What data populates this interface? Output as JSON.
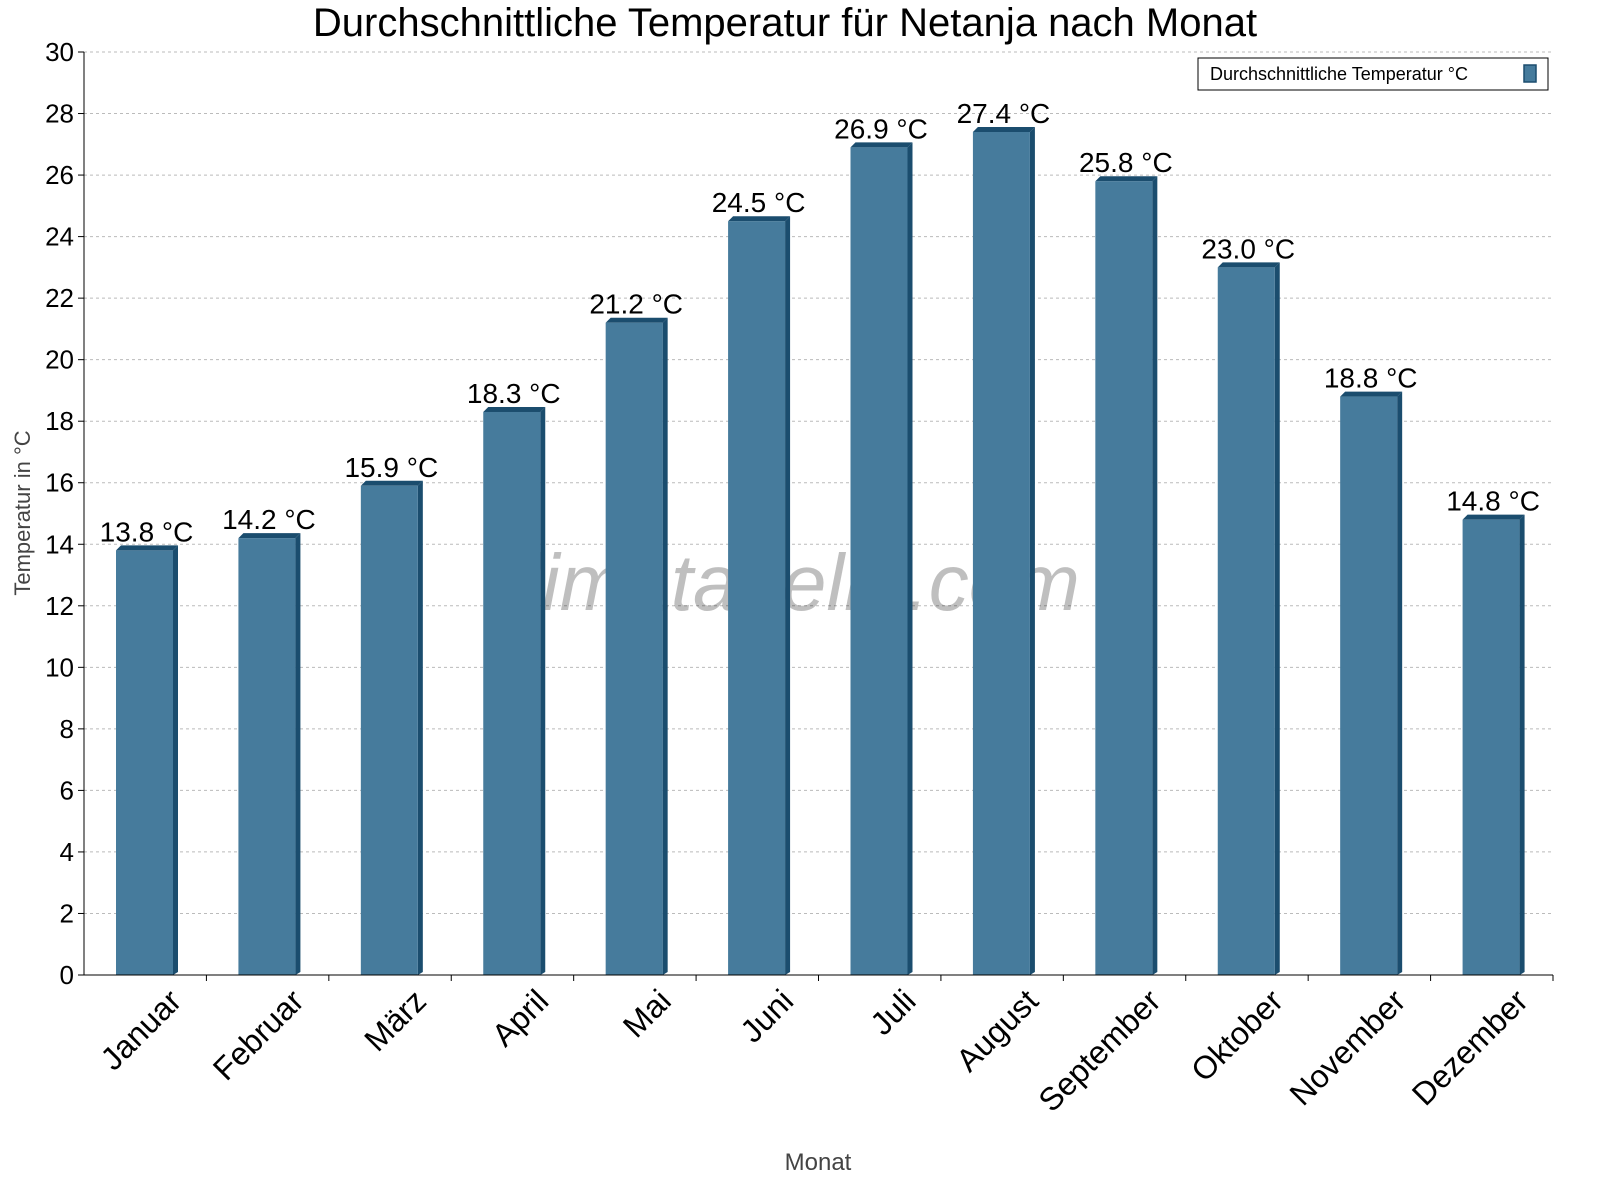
{
  "chart_data": {
    "type": "bar",
    "title": "Durchschnittliche Temperatur für Netanja nach Monat",
    "xlabel": "Monat",
    "ylabel": "Temperatur in °C",
    "categories": [
      "Januar",
      "Februar",
      "März",
      "April",
      "Mai",
      "Juni",
      "Juli",
      "August",
      "September",
      "Oktober",
      "November",
      "Dezember"
    ],
    "series": [
      {
        "name": "Durchschnittliche Temperatur °C",
        "values": [
          13.8,
          14.2,
          15.9,
          18.3,
          21.2,
          24.5,
          26.9,
          27.4,
          25.8,
          23.0,
          18.8,
          14.8
        ],
        "data_labels": [
          "13.8 °C",
          "14.2 °C",
          "15.9 °C",
          "18.3 °C",
          "21.2 °C",
          "24.5 °C",
          "26.9 °C",
          "27.4 °C",
          "25.8 °C",
          "23.0 °C",
          "18.8 °C",
          "14.8 °C"
        ]
      }
    ],
    "ylim": [
      0,
      30
    ],
    "yticks": [
      "0",
      "2",
      "4",
      "6",
      "8",
      "10",
      "12",
      "14",
      "16",
      "18",
      "20",
      "22",
      "24",
      "26",
      "28",
      "30"
    ],
    "grid": true,
    "legend_position": "top-right",
    "colors": {
      "bar": "#467b9c",
      "bar_side": "#1b4d6e"
    },
    "watermark": "klimatabelle.com"
  }
}
